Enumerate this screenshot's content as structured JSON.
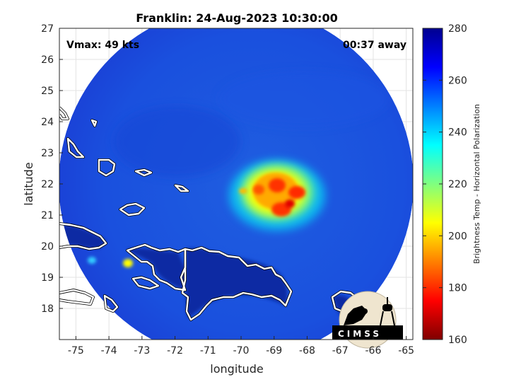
{
  "title": "Franklin: 24-Aug-2023 10:30:00",
  "annotations": {
    "vmax": "Vmax: 49 kts",
    "away": "00:37 away"
  },
  "colorbar": {
    "label": "Brightness Temp - Horizontal Polarization",
    "ticks": [
      "280",
      "260",
      "240",
      "220",
      "200",
      "180",
      "160"
    ],
    "range": [
      160,
      280
    ],
    "colormap": "jet"
  },
  "logo": {
    "text": "CIMSS"
  },
  "chart_data": {
    "type": "heatmap",
    "title": "Franklin: 24-Aug-2023 10:30:00",
    "xlabel": "longitude",
    "ylabel": "latitude",
    "xlim": [
      -75.5,
      -64.8
    ],
    "ylim": [
      17,
      27
    ],
    "xticks": [
      -75,
      -74,
      -73,
      -72,
      -71,
      -70,
      -69,
      -68,
      -67,
      -66,
      -65
    ],
    "yticks": [
      18,
      19,
      20,
      21,
      22,
      23,
      24,
      25,
      26,
      27
    ],
    "xtick_labels": [
      "-75",
      "-74",
      "-73",
      "-72",
      "-71",
      "-70",
      "-69",
      "-68",
      "-67",
      "-66",
      "-65"
    ],
    "ytick_labels": [
      "18",
      "19",
      "20",
      "21",
      "22",
      "23",
      "24",
      "25",
      "26",
      "27"
    ],
    "grid": true,
    "background_value_K": 262,
    "land_value_K": 275,
    "swath": {
      "center_lon": -70.0,
      "center_lat": 22.0,
      "radius_deg": 5.1
    },
    "storm_center": {
      "lon": -69.0,
      "lat": 21.8
    },
    "min_brightness_temp_K": 185,
    "cold_spots_K": [
      {
        "lon": -69.0,
        "lat": 22.0,
        "value": 188
      },
      {
        "lon": -68.3,
        "lat": 21.7,
        "value": 188
      },
      {
        "lon": -68.8,
        "lat": 21.2,
        "value": 190
      },
      {
        "lon": -69.6,
        "lat": 21.6,
        "value": 195
      },
      {
        "lon": -68.6,
        "lat": 21.5,
        "value": 192
      }
    ],
    "warm_spots_K": [
      {
        "lon": -73.5,
        "lat": 19.5,
        "value": 225
      },
      {
        "lon": -74.4,
        "lat": 19.6,
        "value": 235
      }
    ]
  }
}
